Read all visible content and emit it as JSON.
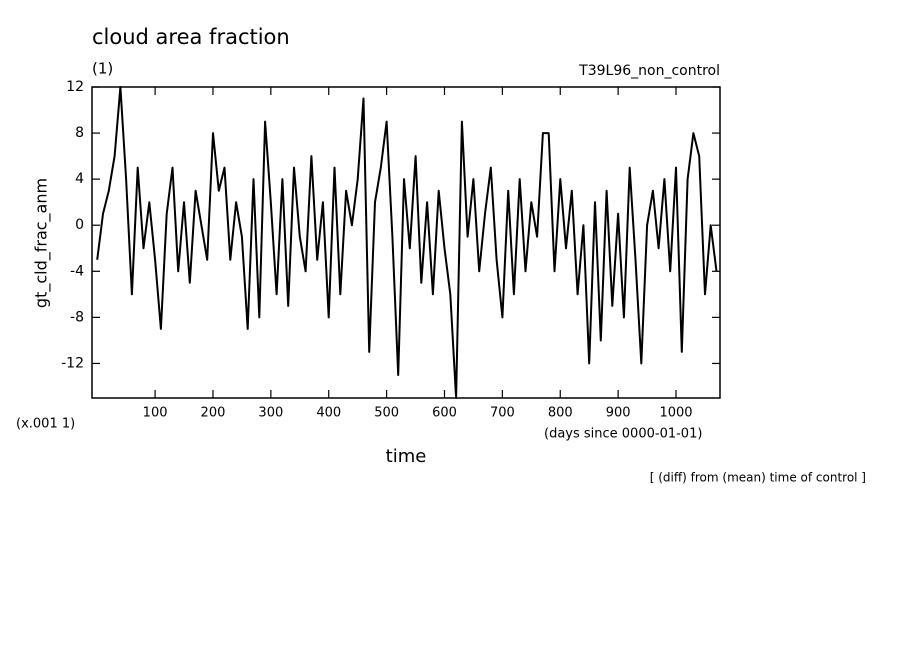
{
  "chart_data": {
    "type": "line",
    "title": "cloud area fraction",
    "subtitle": "(1)",
    "run_label": "T39L96_non_control",
    "y_label": "gt_cld_frac_anm",
    "y_unit": "(x.001 1)",
    "x_label": "time",
    "x_unit": "(days since 0000-01-01)",
    "note": "[ (diff) from (mean) time of control ]",
    "xlim": [
      -9,
      1076
    ],
    "xticks": [
      100,
      200,
      300,
      400,
      500,
      600,
      700,
      800,
      900,
      1000
    ],
    "ylim": [
      -15,
      12
    ],
    "yticks": [
      -12,
      -8,
      -4,
      0,
      4,
      8,
      12
    ],
    "x": [
      0,
      10,
      20,
      30,
      40,
      50,
      60,
      70,
      80,
      90,
      100,
      110,
      120,
      130,
      140,
      150,
      160,
      170,
      180,
      190,
      200,
      210,
      220,
      230,
      240,
      250,
      260,
      270,
      280,
      290,
      300,
      310,
      320,
      330,
      340,
      350,
      360,
      370,
      380,
      390,
      400,
      410,
      420,
      430,
      440,
      450,
      460,
      470,
      480,
      490,
      500,
      510,
      520,
      530,
      540,
      550,
      560,
      570,
      580,
      590,
      600,
      610,
      620,
      630,
      640,
      650,
      660,
      670,
      680,
      690,
      700,
      710,
      720,
      730,
      740,
      750,
      760,
      770,
      780,
      790,
      800,
      810,
      820,
      830,
      840,
      850,
      860,
      870,
      880,
      890,
      900,
      910,
      920,
      930,
      940,
      950,
      960,
      970,
      980,
      990,
      1000,
      1010,
      1020,
      1030,
      1040,
      1050,
      1060,
      1070
    ],
    "series": [
      {
        "color": "#000000",
        "values": [
          -3,
          1,
          3,
          6,
          12,
          4,
          -6,
          5,
          -2,
          2,
          -3,
          -9,
          1,
          5,
          -4,
          2,
          -5,
          3,
          0,
          -3,
          8,
          3,
          5,
          -3,
          2,
          -1,
          -9,
          4,
          -8,
          9,
          2,
          -6,
          4,
          -7,
          5,
          -1,
          -4,
          6,
          -3,
          2,
          -8,
          5,
          -6,
          3,
          0,
          4,
          11,
          -11,
          2,
          5,
          9,
          -1,
          -13,
          4,
          -2,
          6,
          -5,
          2,
          -6,
          3,
          -2,
          -6,
          -15,
          9,
          -1,
          4,
          -4,
          1,
          5,
          -3,
          -8,
          3,
          -6,
          4,
          -4,
          2,
          -1,
          8,
          8,
          -4,
          4,
          -2,
          3,
          -6,
          0,
          -12,
          2,
          -10,
          3,
          -7,
          1,
          -8,
          5,
          -3,
          -12,
          0,
          3,
          -2,
          4,
          -4,
          5,
          -11,
          4,
          8,
          6,
          -6,
          0,
          -4
        ]
      }
    ]
  }
}
